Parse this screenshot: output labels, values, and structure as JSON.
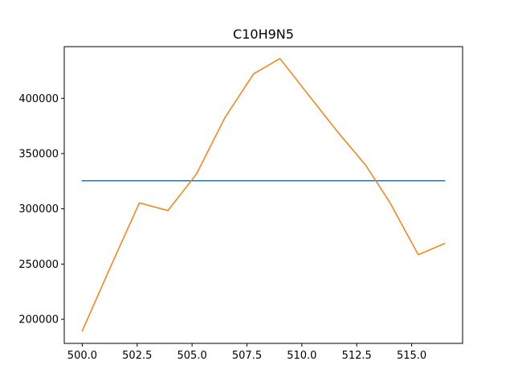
{
  "chart_data": {
    "type": "line",
    "title": "C10H9N5",
    "xlabel": "",
    "ylabel": "",
    "xlim": [
      499.18,
      517.32
    ],
    "ylim": [
      178200,
      446800
    ],
    "x_ticks": [
      500.0,
      502.5,
      505.0,
      507.5,
      510.0,
      512.5,
      515.0
    ],
    "x_tick_labels": [
      "500.0",
      "502.5",
      "505.0",
      "507.5",
      "510.0",
      "512.5",
      "515.0"
    ],
    "y_ticks": [
      200000,
      250000,
      300000,
      350000,
      400000
    ],
    "y_tick_labels": [
      "200000",
      "250000",
      "300000",
      "350000",
      "400000"
    ],
    "grid": false,
    "series": [
      {
        "color": "#1f77b4",
        "x": [
          500.0,
          516.5
        ],
        "y": [
          325400,
          325400
        ]
      },
      {
        "color": "#ff7f0e",
        "x": [
          500.0,
          501.3,
          502.6,
          503.9,
          505.2,
          506.5,
          507.8,
          509.0,
          510.3,
          511.6,
          512.9,
          514.0,
          515.3,
          516.5
        ],
        "y": [
          189500,
          248000,
          305300,
          298400,
          331500,
          382600,
          422100,
          436000,
          403100,
          370300,
          339600,
          306000,
          258400,
          268600
        ]
      }
    ]
  }
}
